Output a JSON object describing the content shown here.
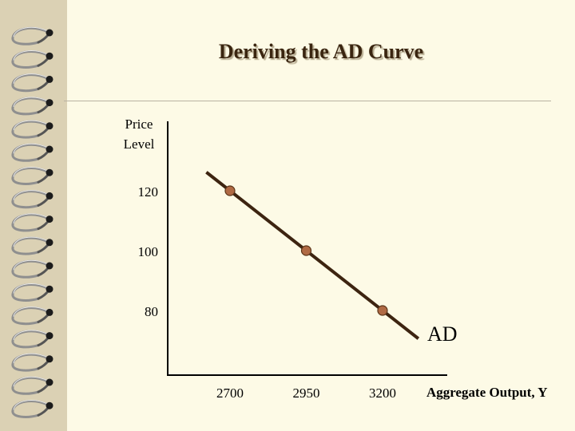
{
  "slide": {
    "title": "Deriving the AD Curve"
  },
  "colors": {
    "background": "#fdfae6",
    "binding": "#dbd1b4",
    "title": "#3a2510",
    "axis": "#000000",
    "curve": "#3d2410",
    "point": "#b06a44"
  },
  "icons": {
    "spiral_ring": "spiral-ring-icon"
  },
  "chart_data": {
    "type": "line",
    "title": "",
    "xlabel": "Aggregate Output, Y",
    "ylabel_lines": [
      "Price",
      "Level"
    ],
    "x_ticks": [
      2700,
      2950,
      3200
    ],
    "y_ticks": [
      80,
      100,
      120
    ],
    "series": [
      {
        "name": "AD",
        "points": [
          {
            "x": 2700,
            "y": 120
          },
          {
            "x": 2950,
            "y": 100
          },
          {
            "x": 3200,
            "y": 80
          }
        ],
        "extends_beyond_points": true
      }
    ],
    "curve_label": "AD",
    "grid": false,
    "legend": "none"
  }
}
